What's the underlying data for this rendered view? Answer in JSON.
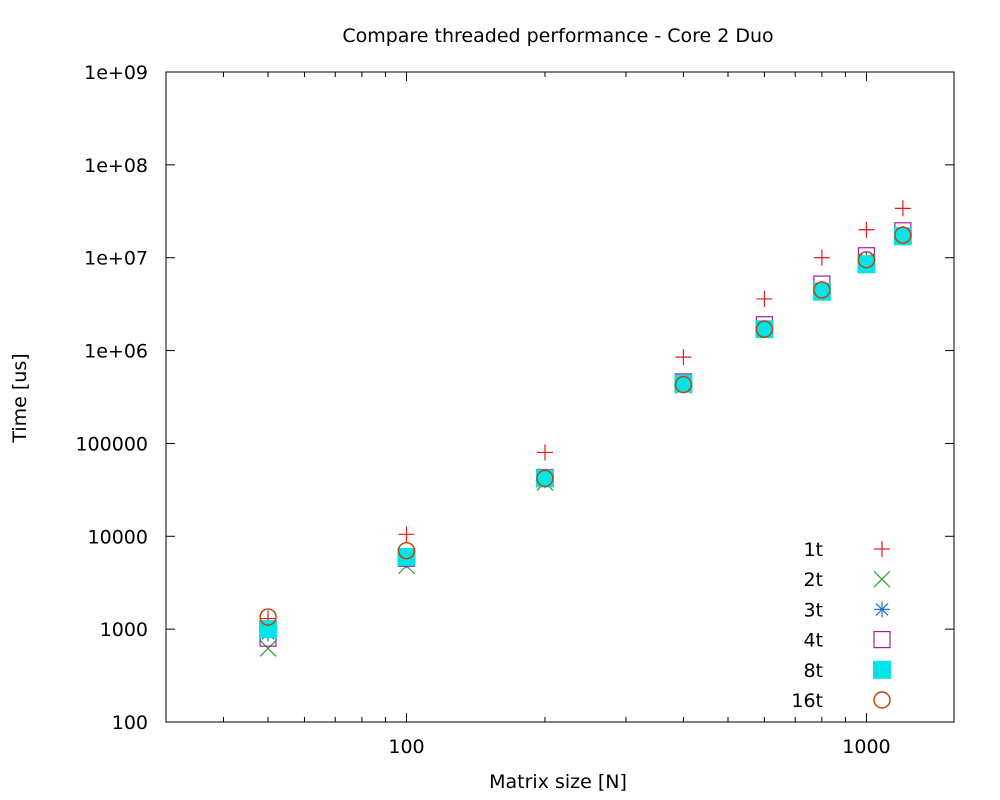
{
  "chart_data": {
    "type": "scatter",
    "title": "Compare threaded performance - Core 2 Duo",
    "xlabel": "Matrix size [N]",
    "ylabel": "Time [us]",
    "xscale": "log",
    "yscale": "log",
    "xlim": [
      30,
      1550
    ],
    "ylim": [
      100,
      1000000000
    ],
    "grid": false,
    "legend_position": "bottom-right",
    "x_ticks": [
      {
        "value": 100,
        "label": "100"
      },
      {
        "value": 1000,
        "label": "1000"
      }
    ],
    "y_ticks": [
      {
        "value": 100,
        "label": "100"
      },
      {
        "value": 1000,
        "label": "1000"
      },
      {
        "value": 10000,
        "label": "10000"
      },
      {
        "value": 100000,
        "label": "100000"
      },
      {
        "value": 1000000,
        "label": "1e+06"
      },
      {
        "value": 10000000,
        "label": "1e+07"
      },
      {
        "value": 100000000,
        "label": "1e+08"
      },
      {
        "value": 1000000000,
        "label": "1e+09"
      }
    ],
    "x": [
      50,
      100,
      200,
      400,
      600,
      800,
      1000,
      1200
    ],
    "series": [
      {
        "name": "1t",
        "marker": "plus",
        "color": "#e41a1c",
        "values": [
          1300,
          10500,
          80000,
          850000,
          3600000,
          10000000,
          20000000,
          34000000
        ]
      },
      {
        "name": "2t",
        "marker": "cross",
        "color": "#2ca02c",
        "values": [
          620,
          4800,
          38000,
          420000,
          1700000,
          4300000,
          9000000,
          17000000
        ]
      },
      {
        "name": "3t",
        "marker": "asterisk",
        "color": "#1f6fd0",
        "values": [
          900,
          5500,
          40000,
          440000,
          1750000,
          4600000,
          9500000,
          18000000
        ]
      },
      {
        "name": "4t",
        "marker": "square",
        "color": "#a020a0",
        "values": [
          800,
          5800,
          43000,
          460000,
          1900000,
          5200000,
          10500000,
          19500000
        ]
      },
      {
        "name": "8t",
        "marker": "filled-square",
        "color": "#00e5e5",
        "values": [
          1000,
          6000,
          42000,
          440000,
          1700000,
          4300000,
          8500000,
          17000000
        ]
      },
      {
        "name": "16t",
        "marker": "circle",
        "color": "#c04000",
        "values": [
          1350,
          7000,
          42000,
          430000,
          1700000,
          4500000,
          9500000,
          17500000
        ]
      }
    ]
  }
}
